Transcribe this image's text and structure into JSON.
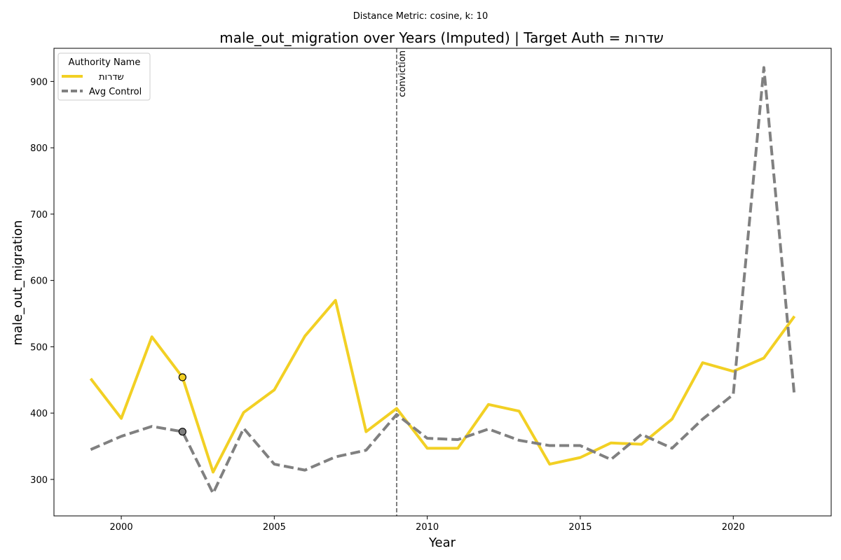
{
  "suptitle": "Distance Metric: cosine, k: 10",
  "chart_data": {
    "type": "line",
    "title": "male_out_migration over Years (Imputed) | Target Auth = שדרות",
    "xlabel": "Year",
    "ylabel": "male_out_migration",
    "xlim": [
      1997.8,
      2023.2
    ],
    "ylim": [
      245,
      950
    ],
    "x_ticks": [
      2000,
      2005,
      2010,
      2015,
      2020
    ],
    "y_ticks": [
      300,
      400,
      500,
      600,
      700,
      800,
      900
    ],
    "x": [
      1999,
      2000,
      2001,
      2002,
      2003,
      2004,
      2005,
      2006,
      2007,
      2008,
      2009,
      2010,
      2011,
      2012,
      2013,
      2014,
      2015,
      2016,
      2017,
      2018,
      2019,
      2020,
      2021,
      2022
    ],
    "grid": false,
    "legend": {
      "title": "Authority Name",
      "placement": "top-left"
    },
    "series": [
      {
        "name": "שדרות",
        "color": "#f2d024",
        "style": "solid",
        "values": [
          452,
          392,
          515,
          454,
          311,
          401,
          435,
          516,
          570,
          372,
          407,
          347,
          347,
          413,
          403,
          323,
          333,
          355,
          353,
          391,
          476,
          463,
          483,
          546
        ]
      },
      {
        "name": "Avg Control",
        "color": "#808080",
        "style": "dashed",
        "values": [
          345,
          365,
          380,
          372,
          279,
          377,
          323,
          314,
          334,
          344,
          398,
          362,
          360,
          376,
          359,
          351,
          351,
          330,
          368,
          347,
          391,
          428,
          921,
          425
        ]
      }
    ],
    "imputed_markers": [
      {
        "x": 2002,
        "y": 454,
        "series": "שדרות"
      },
      {
        "x": 2002,
        "y": 372,
        "series": "Avg Control"
      }
    ],
    "vline": {
      "x": 2009,
      "label": "conviction"
    }
  }
}
